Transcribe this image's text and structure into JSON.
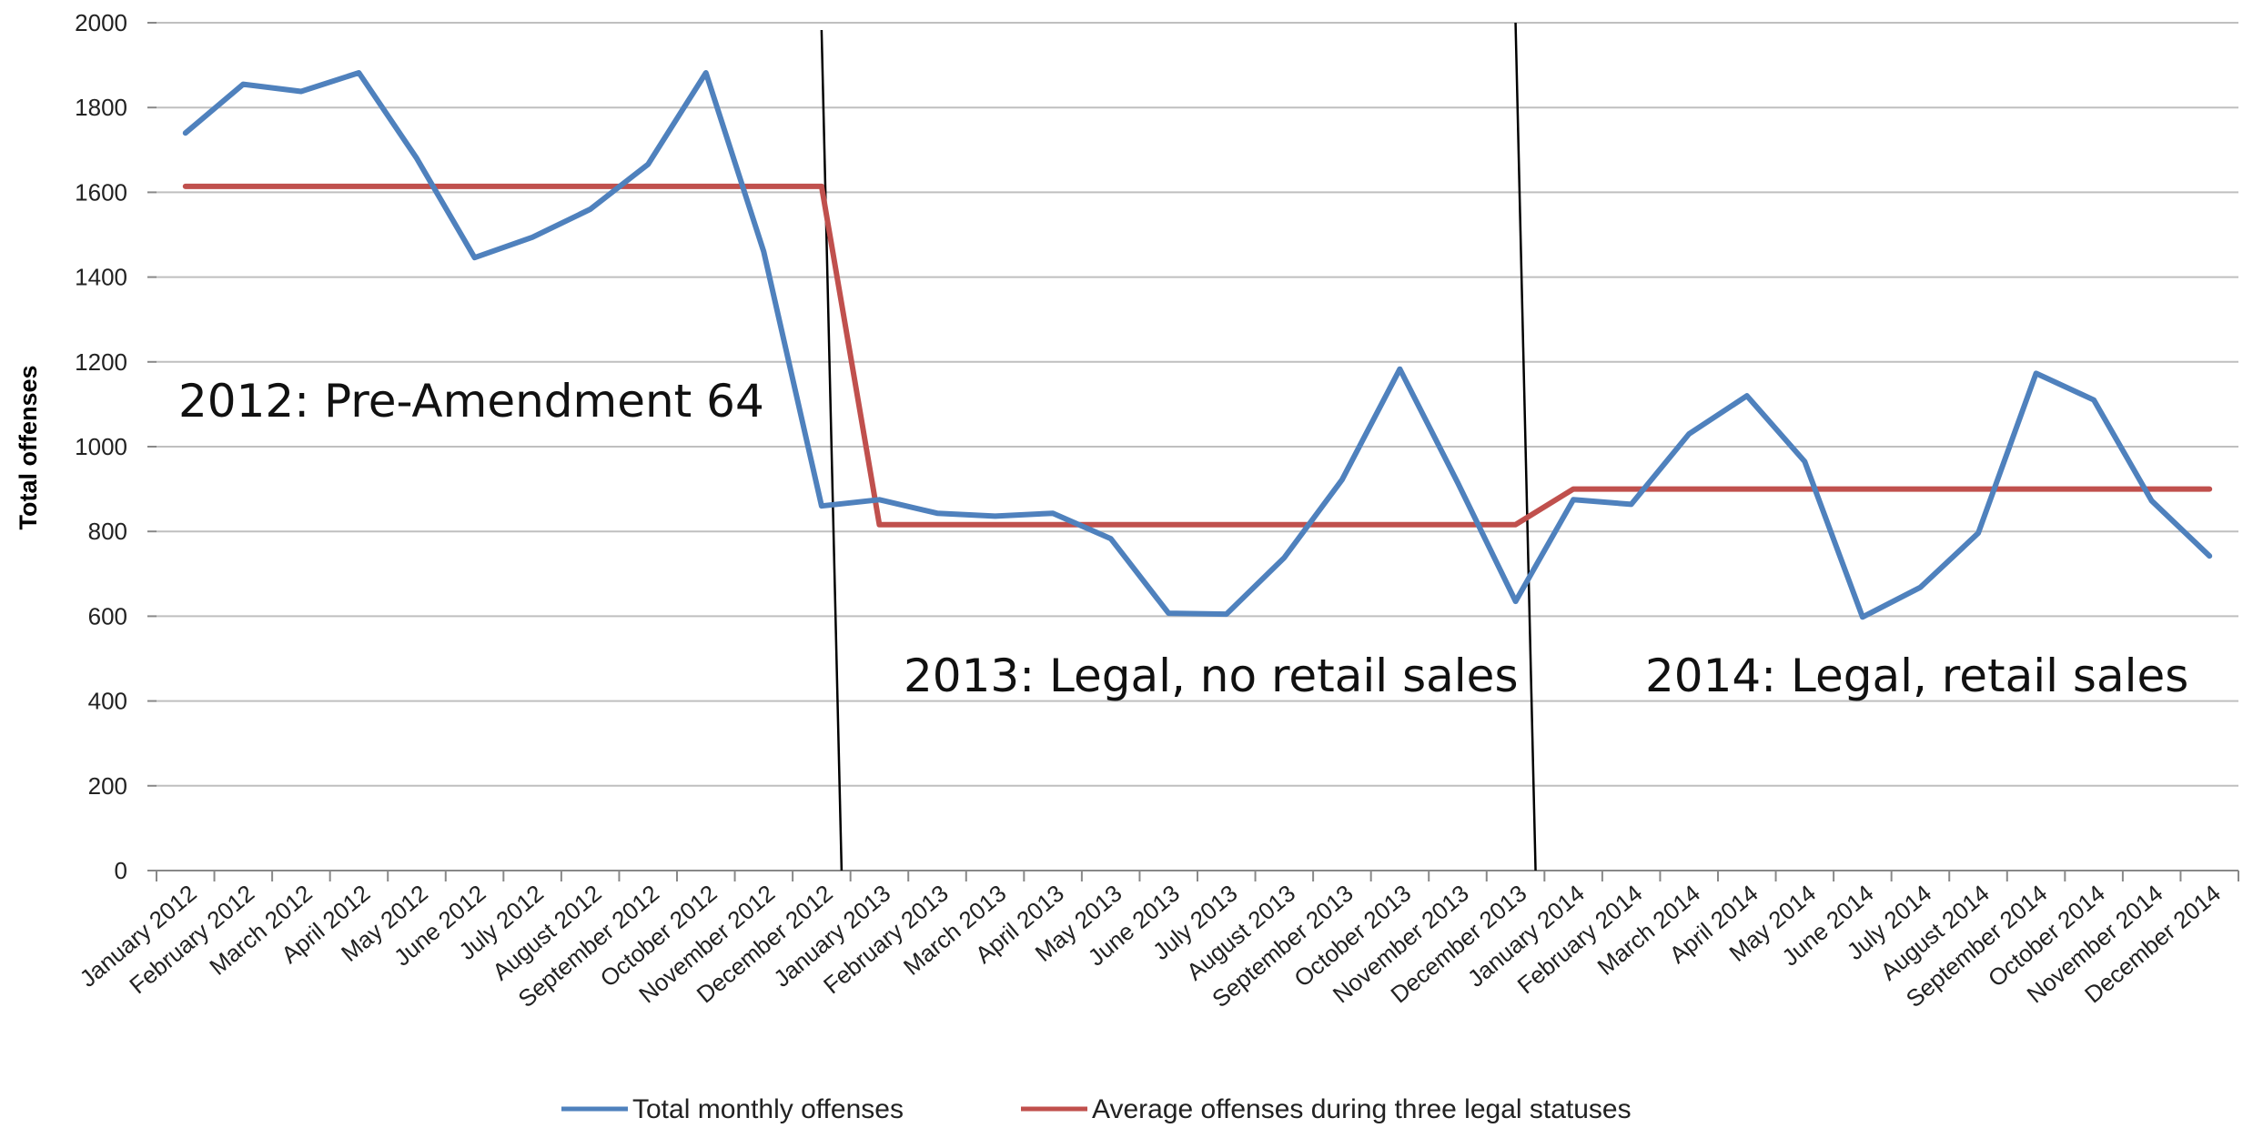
{
  "chart_data": {
    "type": "line",
    "title": "",
    "xlabel": "",
    "ylabel": "Total offenses",
    "ylim": [
      0,
      2000
    ],
    "yticks": [
      0,
      200,
      400,
      600,
      800,
      1000,
      1200,
      1400,
      1600,
      1800,
      2000
    ],
    "grid": true,
    "legend_position": "bottom",
    "categories": [
      "January 2012",
      "February 2012",
      "March 2012",
      "April 2012",
      "May 2012",
      "June 2012",
      "July 2012",
      "August 2012",
      "September 2012",
      "October 2012",
      "November 2012",
      "December 2012",
      "January 2013",
      "February 2013",
      "March 2013",
      "April 2013",
      "May 2013",
      "June 2013",
      "July 2013",
      "August 2013",
      "September 2013",
      "October 2013",
      "November 2013",
      "December 2013",
      "January 2014",
      "February 2014",
      "March 2014",
      "April 2014",
      "May 2014",
      "June 2014",
      "July 2014",
      "August 2014",
      "September 2014",
      "October 2014",
      "November 2014",
      "December 2014"
    ],
    "series": [
      {
        "name": "Total monthly offenses",
        "color": "#4f81bd",
        "values": [
          1740,
          1855,
          1838,
          1882,
          1680,
          1446,
          1494,
          1560,
          1666,
          1882,
          1460,
          860,
          875,
          843,
          836,
          843,
          783,
          607,
          605,
          738,
          922,
          1183,
          915,
          635,
          875,
          864,
          1030,
          1120,
          965,
          598,
          668,
          796,
          1173,
          1110,
          872,
          742
        ]
      },
      {
        "name": "Average offenses during three legal statuses",
        "color": "#c0504d",
        "values": [
          1614,
          1614,
          1614,
          1614,
          1614,
          1614,
          1614,
          1614,
          1614,
          1614,
          1614,
          1614,
          816,
          816,
          816,
          816,
          816,
          816,
          816,
          816,
          816,
          816,
          816,
          816,
          900,
          900,
          900,
          900,
          900,
          900,
          900,
          900,
          900,
          900,
          900,
          900
        ]
      }
    ],
    "annotations": [
      "2012: Pre-Amendment  64",
      "2013: Legal, no retail sales",
      "2014: Legal, retail sales"
    ]
  }
}
